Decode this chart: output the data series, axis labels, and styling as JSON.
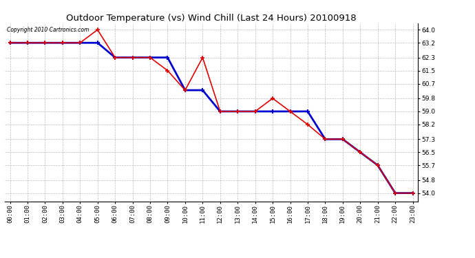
{
  "title": "Outdoor Temperature (vs) Wind Chill (Last 24 Hours) 20100918",
  "copyright_text": "Copyright 2010 Cartronics.com",
  "hours": [
    "00:00",
    "01:00",
    "02:00",
    "03:00",
    "04:00",
    "05:00",
    "06:00",
    "07:00",
    "08:00",
    "09:00",
    "10:00",
    "11:00",
    "12:00",
    "13:00",
    "14:00",
    "15:00",
    "16:00",
    "17:00",
    "18:00",
    "19:00",
    "20:00",
    "21:00",
    "22:00",
    "23:00"
  ],
  "temp": [
    63.2,
    63.2,
    63.2,
    63.2,
    63.2,
    64.0,
    62.3,
    62.3,
    62.3,
    61.5,
    60.3,
    62.3,
    59.0,
    59.0,
    59.0,
    59.8,
    59.0,
    58.2,
    57.3,
    57.3,
    56.5,
    55.7,
    54.0,
    54.0
  ],
  "wind_chill": [
    63.2,
    63.2,
    63.2,
    63.2,
    63.2,
    63.2,
    62.3,
    62.3,
    62.3,
    62.3,
    60.3,
    60.3,
    59.0,
    59.0,
    59.0,
    59.0,
    59.0,
    59.0,
    57.3,
    57.3,
    56.5,
    55.7,
    54.0,
    54.0
  ],
  "ylim_min": 53.5,
  "ylim_max": 64.4,
  "yticks": [
    54.0,
    54.8,
    55.7,
    56.5,
    57.3,
    58.2,
    59.0,
    59.8,
    60.7,
    61.5,
    62.3,
    63.2,
    64.0
  ],
  "temp_color": "#dd0000",
  "wind_chill_color": "#0000cc",
  "background_color": "#ffffff",
  "grid_color": "#bbbbbb",
  "title_fontsize": 9.5,
  "tick_fontsize": 6.5,
  "copyright_fontsize": 5.5
}
